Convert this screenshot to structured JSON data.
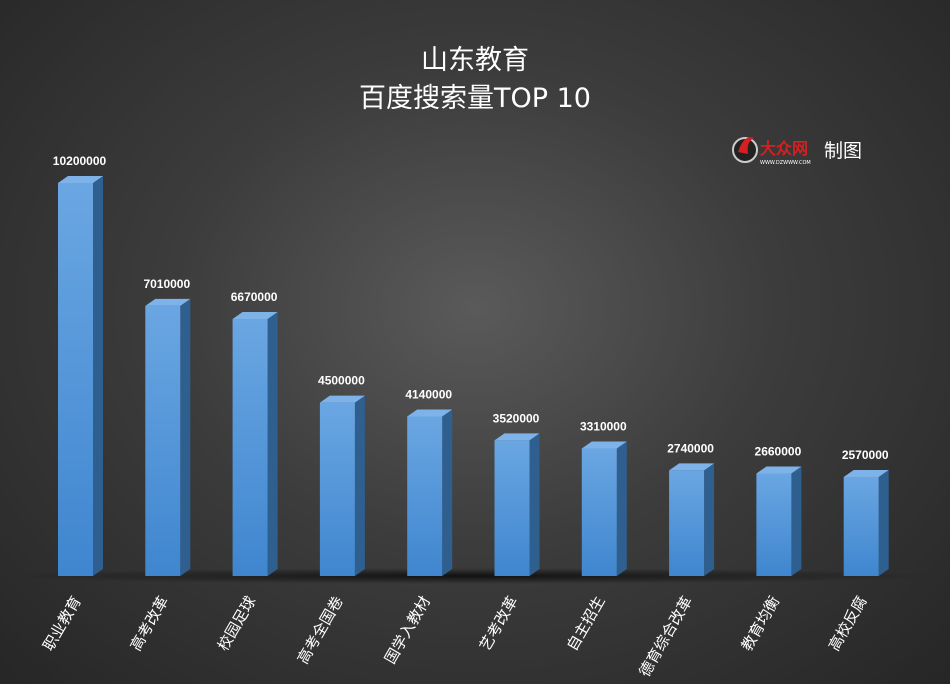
{
  "header": {
    "title_line1": "山东教育",
    "title_line2": "百度搜索量TOP 10"
  },
  "logo": {
    "brand_text": "大众网",
    "url_text": "WWW.DZWWW.COM",
    "credit": "制图"
  },
  "chart_data": {
    "type": "bar",
    "title": "山东教育 百度搜索量TOP 10",
    "categories": [
      "职业教育",
      "高考改革",
      "校园足球",
      "高考全国卷",
      "国学入教材",
      "艺考改革",
      "自主招生",
      "德育综合改革",
      "教育均衡",
      "高校反腐"
    ],
    "values": [
      10200000,
      7010000,
      6670000,
      4500000,
      4140000,
      3520000,
      3310000,
      2740000,
      2660000,
      2570000
    ],
    "labels": [
      "10200000",
      "7010000",
      "6670000",
      "4500000",
      "4140000",
      "3520000",
      "3310000",
      "2740000",
      "2660000",
      "2570000"
    ],
    "ylim": [
      0,
      10200000
    ],
    "grid": false,
    "bar_color": "#4a8fd4",
    "style": "3d-column"
  }
}
